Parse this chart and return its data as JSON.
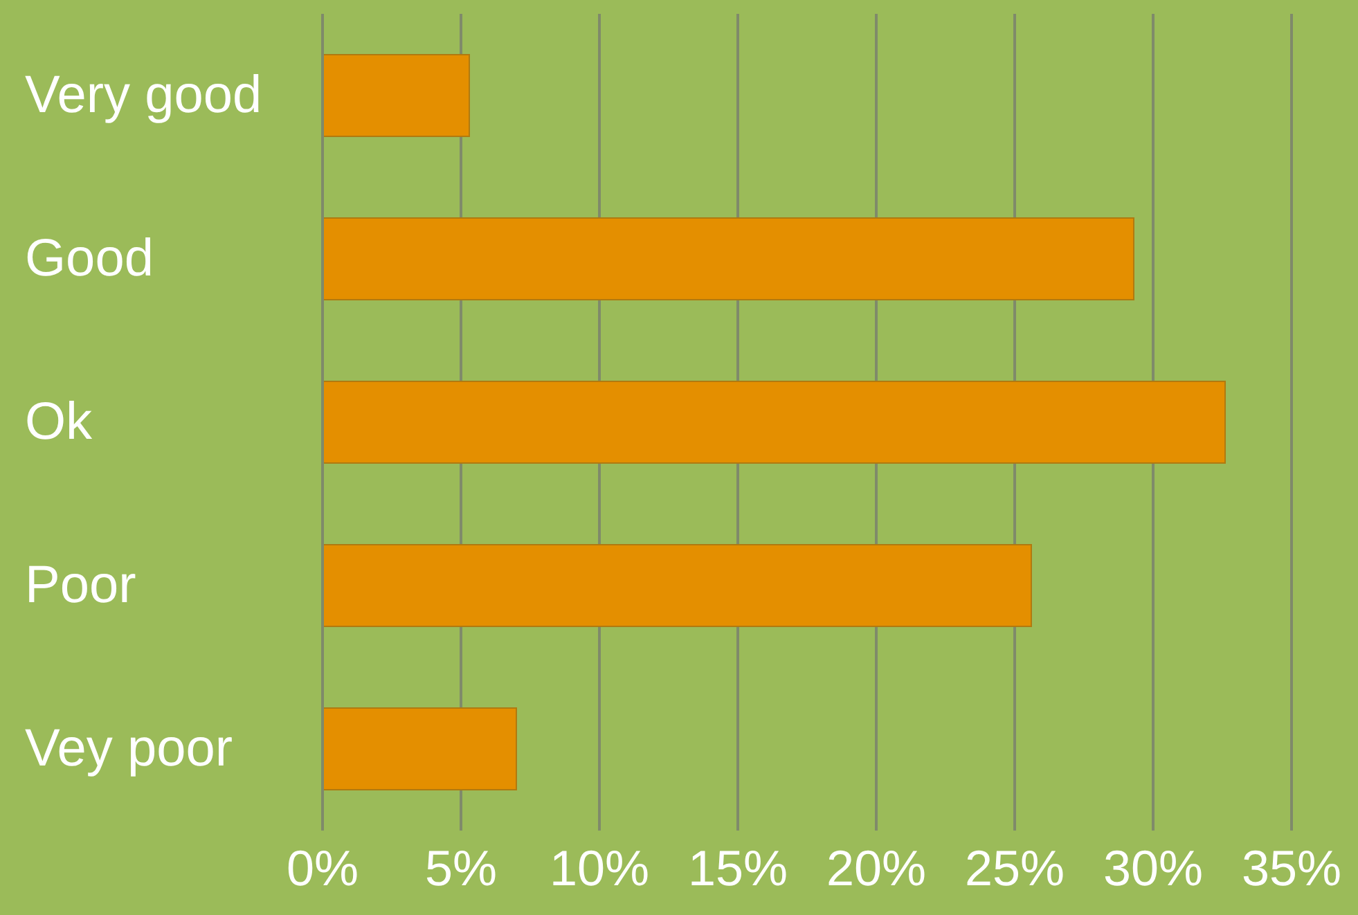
{
  "chart_data": {
    "type": "bar",
    "orientation": "horizontal",
    "categories": [
      "Very good",
      "Good",
      "Ok",
      "Poor",
      "Vey poor"
    ],
    "values": [
      5.3,
      29.3,
      32.6,
      25.6,
      7.0
    ],
    "color": "#e48f00",
    "xlim": [
      0,
      35
    ],
    "xticks": [
      {
        "value": 0,
        "label": "0%"
      },
      {
        "value": 5,
        "label": "5%"
      },
      {
        "value": 10,
        "label": "10%"
      },
      {
        "value": 15,
        "label": "15%"
      },
      {
        "value": 20,
        "label": "20%"
      },
      {
        "value": 25,
        "label": "25%"
      },
      {
        "value": 30,
        "label": "30%"
      },
      {
        "value": 35,
        "label": "35%"
      }
    ],
    "grid": "x",
    "legend": false
  }
}
